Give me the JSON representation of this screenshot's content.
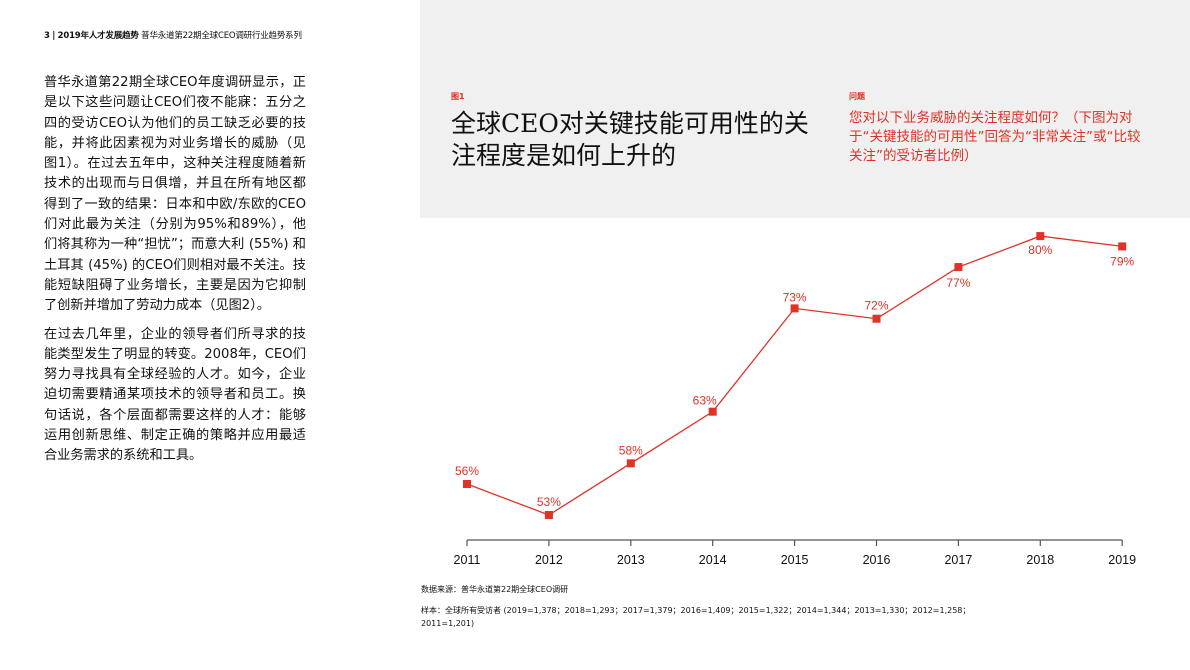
{
  "header": {
    "page_number": "3",
    "separator": "|",
    "report_title": "2019年人才发展趋势",
    "series_title": "普华永道第22期全球CEO调研行业趋势系列"
  },
  "body": {
    "paragraphs": [
      "普华永道第22期全球CEO年度调研显示，正是以下这些问题让CEO们夜不能寐：五分之四的受访CEO认为他们的员工缺乏必要的技能，并将此因素视为对业务增长的威胁（见图1）。在过去五年中，这种关注程度随着新技术的出现而与日俱增，并且在所有地区都得到了一致的结果：日本和中欧/东欧的CEO们对此最为关注（分别为95%和89%），他们将其称为一种“担忧”；而意大利 (55%) 和土耳其 (45%) 的CEO们则相对最不关注。技能短缺阻碍了业务增长，主要是因为它抑制了创新并增加了劳动力成本（见图2）。",
      "在过去几年里，企业的领导者们所寻求的技能类型发生了明显的转变。2008年，CEO们努力寻找具有全球经验的人才。如今，企业迫切需要精通某项技术的领导者和员工。换句话说，各个层面都需要这样的人才：能够运用创新思维、制定正确的策略并应用最适合业务需求的系统和工具。"
    ]
  },
  "figure": {
    "label": "图1",
    "title": "全球CEO对关键技能可用性的关注程度是如何上升的",
    "question_label": "问题",
    "question_text": "您对以下业务威胁的关注程度如何？（下图为对于“关键技能的可用性”回答为“非常关注”或“比较关注”的受访者比例）",
    "source": "数据来源：普华永道第22期全球CEO调研",
    "sample": "样本：全球所有受访者 (2019=1,378；2018=1,293；2017=1,379；2016=1,409；2015=1,322；2014=1,344；2013=1,330；2012=1,258；2011=1,201)"
  },
  "colors": {
    "accent": "#e03226",
    "panel_bg": "#f0f0f0",
    "axis": "#555555"
  },
  "chart_data": {
    "type": "line",
    "title": "全球CEO对关键技能可用性的关注程度是如何上升的",
    "categories": [
      "2011",
      "2012",
      "2013",
      "2014",
      "2015",
      "2016",
      "2017",
      "2018",
      "2019"
    ],
    "series": [
      {
        "name": "非常关注或比较关注的受访者比例",
        "values": [
          56,
          53,
          58,
          63,
          73,
          72,
          77,
          80,
          79
        ]
      }
    ],
    "labels": [
      "56%",
      "53%",
      "58%",
      "63%",
      "73%",
      "72%",
      "77%",
      "80%",
      "79%"
    ],
    "xlabel": "",
    "ylabel": "",
    "ylim": [
      50,
      82
    ],
    "grid": false,
    "legend": "none",
    "marker": "square"
  }
}
